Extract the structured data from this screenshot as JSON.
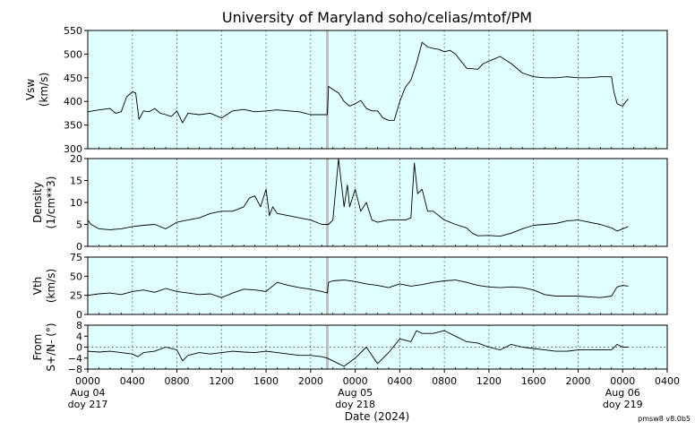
{
  "title": "University of Maryland  soho/celias/mtof/PM",
  "xlabel": "Date (2024)",
  "credit": "pmsw8 v8.0b5",
  "colors": {
    "panel_bg": "#e0ffff",
    "line": "#000000",
    "data_gap": "#c0c0c0",
    "grid": "#555555"
  },
  "x_ticks": [
    {
      "label": "0000",
      "sub": [
        "Aug 04",
        "doy 217"
      ]
    },
    {
      "label": "0400",
      "sub": []
    },
    {
      "label": "0800",
      "sub": []
    },
    {
      "label": "1200",
      "sub": []
    },
    {
      "label": "1600",
      "sub": []
    },
    {
      "label": "2000",
      "sub": []
    },
    {
      "label": "0000",
      "sub": [
        "Aug 05",
        "doy 218"
      ]
    },
    {
      "label": "0400",
      "sub": []
    },
    {
      "label": "0800",
      "sub": []
    },
    {
      "label": "1200",
      "sub": []
    },
    {
      "label": "1600",
      "sub": []
    },
    {
      "label": "2000",
      "sub": []
    },
    {
      "label": "0000",
      "sub": [
        "Aug 06",
        "doy 219"
      ]
    },
    {
      "label": "0400",
      "sub": []
    }
  ],
  "chart_data": [
    {
      "type": "line",
      "ylabel": [
        "Vsw",
        "(km/s)"
      ],
      "xlim_hours": [
        0,
        52
      ],
      "ylim": [
        300,
        550
      ],
      "yticks": [
        300,
        350,
        400,
        450,
        500,
        550
      ],
      "series": [
        {
          "x_hours": [
            0,
            1,
            2,
            2.5,
            3,
            3.5,
            4,
            4.3,
            4.6,
            5,
            5.5,
            6,
            6.5,
            7,
            7.5,
            8,
            8.5,
            9,
            10,
            11,
            12,
            13,
            14,
            15,
            16,
            17,
            18,
            19,
            20,
            21,
            21.5,
            21.6,
            22,
            22.5,
            23,
            23.5,
            24,
            24.5,
            25,
            25.5,
            26,
            26.5,
            27,
            27.5,
            28,
            28.5,
            29,
            29.5,
            30,
            30.5,
            31,
            31.5,
            32,
            32.5,
            33,
            34,
            35,
            35.5,
            36,
            36.5,
            37,
            38,
            39,
            40,
            41,
            42,
            43,
            44,
            45,
            46,
            47,
            47.2,
            47.5,
            48,
            48.3,
            48.5
          ],
          "y": [
            378,
            382,
            385,
            375,
            378,
            410,
            420,
            418,
            362,
            380,
            378,
            385,
            375,
            372,
            368,
            380,
            355,
            375,
            372,
            375,
            365,
            380,
            383,
            378,
            380,
            382,
            380,
            378,
            372,
            372,
            372,
            432,
            425,
            418,
            400,
            390,
            395,
            402,
            385,
            380,
            380,
            365,
            360,
            360,
            400,
            430,
            445,
            480,
            525,
            515,
            512,
            510,
            505,
            508,
            500,
            470,
            468,
            480,
            485,
            490,
            495,
            480,
            460,
            452,
            450,
            450,
            452,
            450,
            450,
            452,
            452,
            422,
            395,
            390,
            400,
            405
          ]
        }
      ],
      "gap_hours": 21.5
    },
    {
      "type": "line",
      "ylabel": [
        "Density",
        "(1/cm**3)"
      ],
      "xlim_hours": [
        0,
        52
      ],
      "ylim": [
        0,
        20
      ],
      "yticks": [
        0,
        5,
        10,
        15,
        20
      ],
      "series": [
        {
          "x_hours": [
            0,
            0.3,
            1,
            2,
            3,
            4,
            5,
            6,
            7,
            8,
            9,
            10,
            11,
            12,
            13,
            14,
            14.5,
            15,
            15.5,
            16,
            16.3,
            16.6,
            17,
            18,
            19,
            20,
            21,
            21.5,
            21.6,
            22,
            22.5,
            23,
            23.3,
            23.5,
            24,
            24.5,
            25,
            25.5,
            26,
            27,
            28,
            28.5,
            29,
            29.3,
            29.6,
            30,
            30.5,
            31,
            32,
            33,
            34,
            34.5,
            35,
            36,
            37,
            38,
            39,
            40,
            41,
            42,
            43,
            44,
            45,
            46,
            47,
            47.5,
            48,
            48.5
          ],
          "y": [
            6,
            5,
            4,
            3.8,
            4,
            4.5,
            4.8,
            5,
            4,
            5.5,
            6,
            6.5,
            7.5,
            8,
            8,
            9,
            11,
            11.5,
            9,
            13,
            7,
            9,
            7.5,
            7,
            6.5,
            6,
            5,
            5,
            5,
            6,
            20,
            9,
            14,
            9,
            13,
            8,
            10,
            6,
            5.5,
            6,
            6,
            6,
            6.5,
            19,
            12,
            13,
            8,
            8,
            6,
            5,
            4.2,
            3,
            2.4,
            2.5,
            2.3,
            3,
            4,
            4.8,
            5,
            5.2,
            5.8,
            6,
            5.5,
            5,
            4.2,
            3.5,
            4,
            4.5
          ]
        }
      ],
      "gap_hours": 21.5
    },
    {
      "type": "line",
      "ylabel": [
        "Vth",
        "(km/s)"
      ],
      "xlim_hours": [
        0,
        52
      ],
      "ylim": [
        0,
        75
      ],
      "yticks": [
        0,
        25,
        50,
        75
      ],
      "series": [
        {
          "x_hours": [
            0,
            1,
            2,
            3,
            4,
            5,
            6,
            7,
            8,
            9,
            10,
            11,
            12,
            13,
            14,
            15,
            16,
            17,
            18,
            19,
            20,
            21,
            21.5,
            21.6,
            22,
            23,
            24,
            25,
            26,
            27,
            28,
            29,
            30,
            31,
            32,
            33,
            34,
            35,
            36,
            37,
            38,
            39,
            40,
            41,
            42,
            43,
            44,
            45,
            46,
            47,
            47.5,
            48,
            48.5
          ],
          "y": [
            25,
            27,
            28,
            26,
            30,
            32,
            29,
            34,
            30,
            28,
            26,
            27,
            22,
            28,
            33,
            32,
            30,
            42,
            38,
            35,
            33,
            30,
            28,
            42,
            44,
            45,
            43,
            40,
            38,
            35,
            40,
            37,
            39,
            42,
            44,
            45,
            42,
            38,
            36,
            35,
            36,
            35,
            32,
            26,
            24,
            24,
            24,
            23,
            22,
            24,
            36,
            38,
            37
          ]
        }
      ],
      "gap_hours": 21.5
    },
    {
      "type": "line",
      "ylabel": [
        "From",
        "S+/N- (°)"
      ],
      "xlim_hours": [
        0,
        52
      ],
      "ylim": [
        -8,
        8
      ],
      "yticks": [
        -8,
        -4,
        0,
        4,
        8
      ],
      "ytick_labels": [
        "−8",
        "−4",
        "0",
        "4",
        "8"
      ],
      "series": [
        {
          "x_hours": [
            0,
            1,
            2,
            3,
            4,
            4.5,
            5,
            6,
            7,
            8,
            8.5,
            9,
            10,
            11,
            12,
            13,
            14,
            15,
            16,
            17,
            18,
            19,
            20,
            21,
            21.5,
            22,
            23,
            24,
            24.5,
            25,
            25.5,
            26,
            27,
            28,
            29,
            29.5,
            30,
            31,
            32,
            33,
            34,
            35,
            36,
            37,
            38,
            39,
            40,
            41,
            42,
            43,
            44,
            45,
            46,
            47,
            47.5,
            48,
            48.5
          ],
          "y": [
            -1.5,
            -1.8,
            -1.5,
            -2,
            -2.5,
            -3.5,
            -2,
            -1.5,
            0,
            -1,
            -5,
            -3,
            -2,
            -2.5,
            -2,
            -1.5,
            -1.8,
            -2,
            -1.5,
            -2,
            -2.5,
            -3,
            -3,
            -3.5,
            -4,
            -5,
            -7,
            -4,
            -2,
            0,
            -3,
            -6,
            -2,
            3,
            2,
            6,
            5,
            5,
            6,
            4,
            2,
            1.5,
            0,
            -1,
            1,
            0,
            -0.5,
            -1,
            -1.5,
            -1.5,
            -1,
            -1,
            -1,
            -1,
            1,
            0,
            0
          ]
        }
      ],
      "gap_hours": 21.5
    }
  ]
}
